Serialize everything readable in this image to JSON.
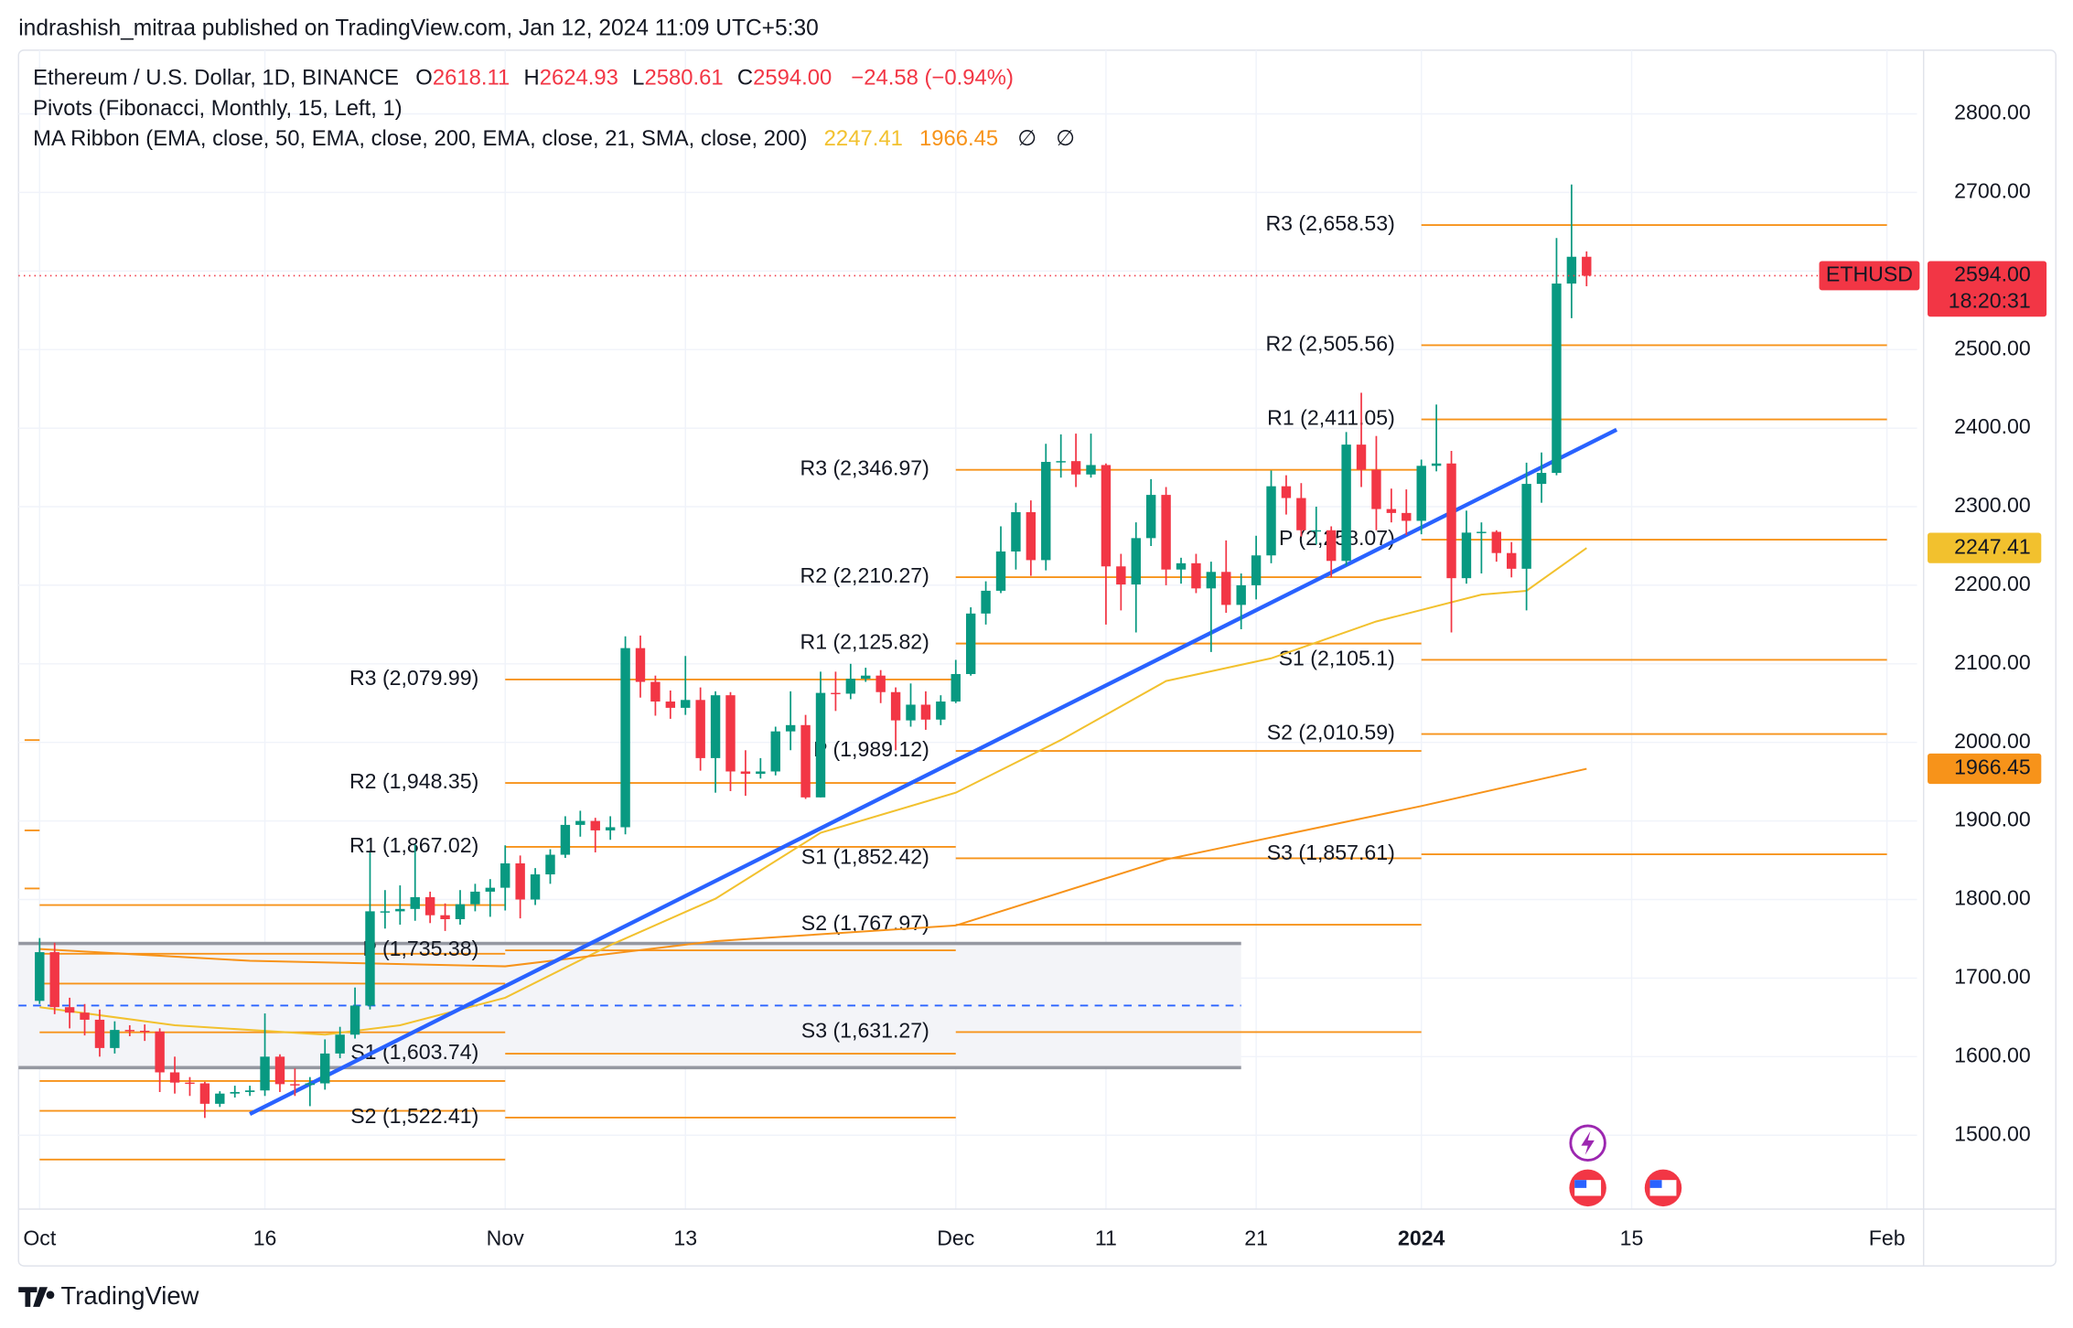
{
  "chart_data": {
    "type": "candlestick",
    "publisher": "indrashish_mitraa published on TradingView.com, Jan 12, 2024 11:09 UTC+5:30",
    "legend": {
      "symbol": "Ethereum / U.S. Dollar, 1D, BINANCE",
      "ohlc": [
        {
          "label": "O",
          "value": "2618.11"
        },
        {
          "label": "H",
          "value": "2624.93"
        },
        {
          "label": "L",
          "value": "2580.61"
        },
        {
          "label": "C",
          "value": "2594.00"
        }
      ],
      "change": "−24.58 (−0.94%)",
      "pivots": "Pivots (Fibonacci, Monthly, 15, Left, 1)",
      "ribbon": "MA Ribbon (EMA, close, 50, EMA, close, 200, EMA, close, 21, SMA, close, 200)",
      "na": [
        "∅",
        "∅"
      ]
    },
    "brand": "TradingView",
    "up_color": "#089981",
    "down_color": "#f23645",
    "xlim": [
      "2023-09-30",
      "2024-02-03"
    ],
    "xticks": [
      {
        "value": "2023-10-01",
        "label": "Oct"
      },
      {
        "value": "2023-10-16",
        "label": "16"
      },
      {
        "value": "2023-11-01",
        "label": "Nov"
      },
      {
        "value": "2023-11-13",
        "label": "13"
      },
      {
        "value": "2023-12-01",
        "label": "Dec"
      },
      {
        "value": "2023-12-11",
        "label": "11"
      },
      {
        "value": "2023-12-21",
        "label": "21"
      },
      {
        "value": "2024-01-01",
        "label": "2024"
      },
      {
        "value": "2024-01-15",
        "label": "15"
      },
      {
        "value": "2024-02-01",
        "label": "Feb"
      }
    ],
    "ylim": [
      1406,
      2881
    ],
    "yticks": [
      {
        "value": 1500,
        "label": "1500.00"
      },
      {
        "value": 1600,
        "label": "1600.00"
      },
      {
        "value": 1700,
        "label": "1700.00"
      },
      {
        "value": 1800,
        "label": "1800.00"
      },
      {
        "value": 1900,
        "label": "1900.00"
      },
      {
        "value": 2000,
        "label": "2000.00"
      },
      {
        "value": 2100,
        "label": "2100.00"
      },
      {
        "value": 2200,
        "label": "2200.00"
      },
      {
        "value": 2300,
        "label": "2300.00"
      },
      {
        "value": 2400,
        "label": "2400.00"
      },
      {
        "value": 2500,
        "label": "2500.00"
      },
      {
        "value": 2600,
        "label": "2600.00"
      },
      {
        "value": 2700,
        "label": "2700.00"
      },
      {
        "value": 2800,
        "label": "2800.00"
      }
    ],
    "grid": true,
    "x": [
      "2023-10-01",
      "2023-10-02",
      "2023-10-03",
      "2023-10-04",
      "2023-10-05",
      "2023-10-06",
      "2023-10-07",
      "2023-10-08",
      "2023-10-09",
      "2023-10-10",
      "2023-10-11",
      "2023-10-12",
      "2023-10-13",
      "2023-10-14",
      "2023-10-15",
      "2023-10-16",
      "2023-10-17",
      "2023-10-18",
      "2023-10-19",
      "2023-10-20",
      "2023-10-21",
      "2023-10-22",
      "2023-10-23",
      "2023-10-24",
      "2023-10-25",
      "2023-10-26",
      "2023-10-27",
      "2023-10-28",
      "2023-10-29",
      "2023-10-30",
      "2023-10-31",
      "2023-11-01",
      "2023-11-02",
      "2023-11-03",
      "2023-11-04",
      "2023-11-05",
      "2023-11-06",
      "2023-11-07",
      "2023-11-08",
      "2023-11-09",
      "2023-11-10",
      "2023-11-11",
      "2023-11-12",
      "2023-11-13",
      "2023-11-14",
      "2023-11-15",
      "2023-11-16",
      "2023-11-17",
      "2023-11-18",
      "2023-11-19",
      "2023-11-20",
      "2023-11-21",
      "2023-11-22",
      "2023-11-23",
      "2023-11-24",
      "2023-11-25",
      "2023-11-26",
      "2023-11-27",
      "2023-11-28",
      "2023-11-29",
      "2023-11-30",
      "2023-12-01",
      "2023-12-02",
      "2023-12-03",
      "2023-12-04",
      "2023-12-05",
      "2023-12-06",
      "2023-12-07",
      "2023-12-08",
      "2023-12-09",
      "2023-12-10",
      "2023-12-11",
      "2023-12-12",
      "2023-12-13",
      "2023-12-14",
      "2023-12-15",
      "2023-12-16",
      "2023-12-17",
      "2023-12-18",
      "2023-12-19",
      "2023-12-20",
      "2023-12-21",
      "2023-12-22",
      "2023-12-23",
      "2023-12-24",
      "2023-12-25",
      "2023-12-26",
      "2023-12-27",
      "2023-12-28",
      "2023-12-29",
      "2023-12-30",
      "2023-12-31",
      "2024-01-01",
      "2024-01-02",
      "2024-01-03",
      "2024-01-04",
      "2024-01-05",
      "2024-01-06",
      "2024-01-07",
      "2024-01-08",
      "2024-01-09",
      "2024-01-10",
      "2024-01-11",
      "2024-01-12"
    ],
    "open": [
      1671,
      1733,
      1663,
      1656,
      1647,
      1611,
      1634,
      1633,
      1632,
      1580,
      1567,
      1566,
      1540,
      1553,
      1555,
      1557,
      1600,
      1565,
      1564,
      1566,
      1604,
      1628,
      1665,
      1785,
      1785,
      1788,
      1803,
      1780,
      1775,
      1794,
      1810,
      1815,
      1846,
      1800,
      1832,
      1857,
      1895,
      1900,
      1888,
      1892,
      2120,
      2077,
      2052,
      2044,
      2054,
      1980,
      2060,
      1963,
      1960,
      1963,
      2014,
      2022,
      1930,
      2063,
      2062,
      2081,
      2085,
      2064,
      2028,
      2048,
      2029,
      2052,
      2087,
      2164,
      2193,
      2243,
      2293,
      2232,
      2357,
      2358,
      2341,
      2353,
      2224,
      2201,
      2260,
      2315,
      2220,
      2228,
      2196,
      2217,
      2175,
      2200,
      2238,
      2326,
      2311,
      2270,
      2270,
      2231,
      2379,
      2347,
      2297,
      2292,
      2282,
      2352,
      2355,
      2209,
      2267,
      2268,
      2241,
      2221,
      2329,
      2343,
      2584,
      2618.11
    ],
    "high": [
      1751,
      1745,
      1675,
      1667,
      1660,
      1645,
      1640,
      1641,
      1636,
      1600,
      1574,
      1568,
      1556,
      1563,
      1563,
      1655,
      1603,
      1585,
      1574,
      1622,
      1638,
      1688,
      1860,
      1812,
      1818,
      1870,
      1810,
      1795,
      1812,
      1820,
      1826,
      1869,
      1856,
      1840,
      1864,
      1906,
      1913,
      1904,
      1906,
      2135,
      2136,
      2085,
      2066,
      2110,
      2070,
      2065,
      2064,
      1990,
      1980,
      2020,
      2065,
      2035,
      2090,
      2090,
      2100,
      2095,
      2092,
      2070,
      2075,
      2065,
      2060,
      2105,
      2172,
      2205,
      2275,
      2305,
      2308,
      2380,
      2392,
      2393,
      2393,
      2355,
      2240,
      2280,
      2335,
      2325,
      2235,
      2240,
      2230,
      2257,
      2215,
      2263,
      2346,
      2340,
      2330,
      2300,
      2275,
      2395,
      2445,
      2390,
      2323,
      2322,
      2360,
      2430,
      2371,
      2295,
      2280,
      2270,
      2255,
      2356,
      2369,
      2642,
      2710,
      2624.93
    ],
    "low": [
      1667,
      1654,
      1636,
      1627,
      1600,
      1604,
      1626,
      1620,
      1555,
      1553,
      1550,
      1522,
      1536,
      1548,
      1550,
      1550,
      1555,
      1550,
      1537,
      1558,
      1598,
      1623,
      1660,
      1763,
      1768,
      1773,
      1770,
      1760,
      1768,
      1785,
      1778,
      1786,
      1776,
      1793,
      1820,
      1853,
      1880,
      1860,
      1876,
      1883,
      2057,
      2034,
      2030,
      2035,
      1964,
      1936,
      1938,
      1932,
      1954,
      1958,
      1990,
      1928,
      1930,
      2040,
      2055,
      2077,
      2050,
      1990,
      2020,
      2016,
      2022,
      2050,
      2085,
      2150,
      2190,
      2220,
      2212,
      2219,
      2337,
      2325,
      2337,
      2150,
      2168,
      2140,
      2250,
      2200,
      2202,
      2190,
      2115,
      2165,
      2144,
      2182,
      2228,
      2290,
      2262,
      2252,
      2210,
      2225,
      2325,
      2270,
      2280,
      2264,
      2265,
      2345,
      2140,
      2202,
      2215,
      2230,
      2210,
      2168,
      2305,
      2340,
      2540,
      2580.61
    ],
    "close": [
      1733,
      1663,
      1656,
      1647,
      1611,
      1634,
      1633,
      1632,
      1580,
      1567,
      1566,
      1540,
      1553,
      1555,
      1557,
      1600,
      1565,
      1564,
      1566,
      1604,
      1628,
      1665,
      1785,
      1785,
      1788,
      1803,
      1780,
      1775,
      1794,
      1810,
      1815,
      1846,
      1800,
      1832,
      1857,
      1895,
      1900,
      1888,
      1892,
      2120,
      2077,
      2052,
      2044,
      2054,
      1980,
      2060,
      1963,
      1960,
      1963,
      2014,
      2022,
      1930,
      2063,
      2062,
      2081,
      2085,
      2064,
      2028,
      2048,
      2029,
      2052,
      2087,
      2164,
      2193,
      2243,
      2293,
      2232,
      2357,
      2358,
      2341,
      2353,
      2224,
      2201,
      2260,
      2315,
      2220,
      2228,
      2196,
      2217,
      2175,
      2200,
      2238,
      2326,
      2311,
      2270,
      2270,
      2231,
      2379,
      2347,
      2297,
      2292,
      2282,
      2352,
      2355,
      2209,
      2267,
      2268,
      2241,
      2221,
      2329,
      2343,
      2584,
      2618.11,
      2594
    ],
    "lines": [
      {
        "color": "#f2c12e",
        "tag_text": "#131722",
        "x": [
          "2023-10-01",
          "2023-10-10",
          "2023-10-20",
          "2023-10-25",
          "2023-11-01",
          "2023-11-08",
          "2023-11-15",
          "2023-11-22",
          "2023-12-01",
          "2023-12-08",
          "2023-12-15",
          "2023-12-22",
          "2023-12-29",
          "2024-01-05",
          "2024-01-08",
          "2024-01-12"
        ],
        "values": [
          1663,
          1640,
          1628,
          1640,
          1675,
          1742,
          1801,
          1885,
          1936,
          2003,
          2078,
          2107,
          2154,
          2188,
          2193,
          2247.41
        ]
      },
      {
        "color": "#f7931a",
        "tag_text": "#131722",
        "x": [
          "2023-10-01",
          "2023-10-15",
          "2023-11-01",
          "2023-11-15",
          "2023-12-01",
          "2023-12-15",
          "2024-01-01",
          "2024-01-12"
        ],
        "values": [
          1737,
          1722,
          1715,
          1747,
          1767,
          1851,
          1919,
          1966.45
        ]
      }
    ],
    "pivot_color": "#f7931a",
    "pivots": [
      {
        "start": "2023-09-30",
        "end": "2023-10-01",
        "levels": [
          2003,
          1888,
          1814
        ],
        "labels": [
          null,
          null,
          null
        ]
      },
      {
        "start": "2023-10-01",
        "end": "2023-11-01",
        "levels": [
          1793,
          1731,
          1693,
          1631,
          1569,
          1531,
          1469
        ],
        "labels": [
          null,
          null,
          null,
          null,
          null,
          null,
          null
        ]
      },
      {
        "start": "2023-11-01",
        "end": "2023-12-01",
        "levels": [
          2079.99,
          1948.35,
          1867.02,
          1735.38,
          1603.74,
          1522.41
        ],
        "labels": [
          "R3 (2,079.99)",
          "R2 (1,948.35)",
          "R1 (1,867.02)",
          "P (1,735.38)",
          "S1 (1,603.74)",
          "S2 (1,522.41)"
        ]
      },
      {
        "start": "2023-12-01",
        "end": "2024-01-01",
        "levels": [
          2346.97,
          2210.27,
          2125.82,
          1989.12,
          1852.42,
          1767.97,
          1631.27
        ],
        "labels": [
          "R3 (2,346.97)",
          "R2 (2,210.27)",
          "R1 (2,125.82)",
          "P (1,989.12)",
          "S1 (1,852.42)",
          "S2 (1,767.97)",
          "S3 (1,631.27)"
        ]
      },
      {
        "start": "2024-01-01",
        "end": "2024-02-01",
        "levels": [
          2658.53,
          2505.56,
          2411.05,
          2258.07,
          2105.1,
          2010.59,
          1857.61
        ],
        "labels": [
          "R3 (2,658.53)",
          "R2 (2,505.56)",
          "R1 (2,411.05)",
          "P (2,258.07)",
          "S1 (2,105.1)",
          "S2 (2,010.59)",
          "S3 (1,857.61)"
        ]
      }
    ],
    "range_box": {
      "start": "2023-09-30",
      "end": "2023-12-20",
      "top": 1744,
      "bottom": 1586,
      "mid": 1665
    },
    "trendline": {
      "color": "#2962ff",
      "x": [
        "2023-10-15",
        "2024-01-14"
      ],
      "values": [
        1527,
        2398
      ]
    },
    "price_line": {
      "value": 2594,
      "label": "2594.00",
      "symbol": "ETHUSD",
      "countdown": "18:20:31"
    }
  }
}
